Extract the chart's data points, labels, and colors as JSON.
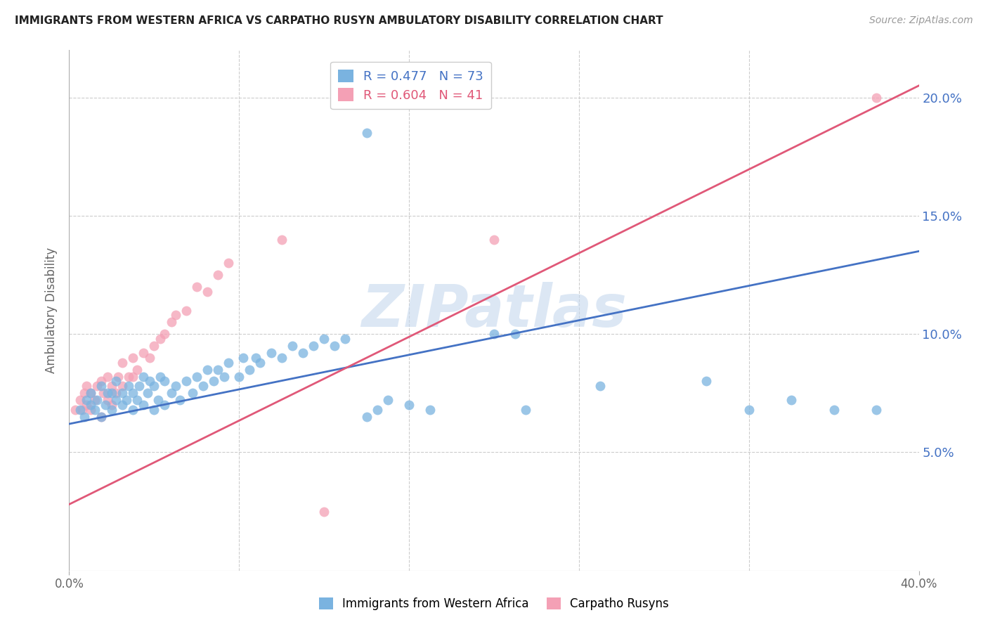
{
  "title": "IMMIGRANTS FROM WESTERN AFRICA VS CARPATHO RUSYN AMBULATORY DISABILITY CORRELATION CHART",
  "source": "Source: ZipAtlas.com",
  "ylabel": "Ambulatory Disability",
  "xlim": [
    0.0,
    0.4
  ],
  "ylim": [
    0.0,
    0.22
  ],
  "yticks": [
    0.05,
    0.1,
    0.15,
    0.2
  ],
  "ytick_labels": [
    "5.0%",
    "10.0%",
    "15.0%",
    "20.0%"
  ],
  "blue_R": 0.477,
  "blue_N": 73,
  "pink_R": 0.604,
  "pink_N": 41,
  "blue_color": "#7ab3e0",
  "pink_color": "#f4a0b5",
  "blue_line_color": "#4472c4",
  "pink_line_color": "#e05878",
  "watermark": "ZIPatlas",
  "watermark_color": "#c5d8ee",
  "blue_line_x0": 0.0,
  "blue_line_y0": 0.062,
  "blue_line_x1": 0.4,
  "blue_line_y1": 0.135,
  "pink_line_x0": 0.0,
  "pink_line_y0": 0.028,
  "pink_line_x1": 0.4,
  "pink_line_y1": 0.205,
  "background_color": "#ffffff",
  "grid_color": "#cccccc",
  "blue_scatter_x": [
    0.005,
    0.007,
    0.008,
    0.01,
    0.01,
    0.012,
    0.013,
    0.015,
    0.015,
    0.017,
    0.018,
    0.02,
    0.02,
    0.022,
    0.022,
    0.025,
    0.025,
    0.027,
    0.028,
    0.03,
    0.03,
    0.032,
    0.033,
    0.035,
    0.035,
    0.037,
    0.038,
    0.04,
    0.04,
    0.042,
    0.043,
    0.045,
    0.045,
    0.048,
    0.05,
    0.052,
    0.055,
    0.058,
    0.06,
    0.063,
    0.065,
    0.068,
    0.07,
    0.073,
    0.075,
    0.08,
    0.082,
    0.085,
    0.088,
    0.09,
    0.095,
    0.1,
    0.105,
    0.11,
    0.115,
    0.12,
    0.125,
    0.13,
    0.14,
    0.145,
    0.15,
    0.16,
    0.17,
    0.2,
    0.21,
    0.215,
    0.25,
    0.3,
    0.32,
    0.34,
    0.36,
    0.38,
    0.14
  ],
  "blue_scatter_y": [
    0.068,
    0.065,
    0.072,
    0.07,
    0.075,
    0.068,
    0.072,
    0.065,
    0.078,
    0.07,
    0.075,
    0.068,
    0.075,
    0.072,
    0.08,
    0.07,
    0.075,
    0.072,
    0.078,
    0.068,
    0.075,
    0.072,
    0.078,
    0.07,
    0.082,
    0.075,
    0.08,
    0.068,
    0.078,
    0.072,
    0.082,
    0.07,
    0.08,
    0.075,
    0.078,
    0.072,
    0.08,
    0.075,
    0.082,
    0.078,
    0.085,
    0.08,
    0.085,
    0.082,
    0.088,
    0.082,
    0.09,
    0.085,
    0.09,
    0.088,
    0.092,
    0.09,
    0.095,
    0.092,
    0.095,
    0.098,
    0.095,
    0.098,
    0.065,
    0.068,
    0.072,
    0.07,
    0.068,
    0.1,
    0.1,
    0.068,
    0.078,
    0.08,
    0.068,
    0.072,
    0.068,
    0.068,
    0.185
  ],
  "pink_scatter_x": [
    0.003,
    0.005,
    0.006,
    0.007,
    0.008,
    0.008,
    0.01,
    0.01,
    0.012,
    0.013,
    0.015,
    0.015,
    0.016,
    0.018,
    0.018,
    0.02,
    0.02,
    0.022,
    0.023,
    0.025,
    0.025,
    0.028,
    0.03,
    0.03,
    0.032,
    0.035,
    0.038,
    0.04,
    0.043,
    0.045,
    0.048,
    0.05,
    0.055,
    0.06,
    0.065,
    0.07,
    0.075,
    0.1,
    0.2,
    0.38,
    0.12
  ],
  "pink_scatter_y": [
    0.068,
    0.072,
    0.068,
    0.075,
    0.07,
    0.078,
    0.068,
    0.075,
    0.072,
    0.078,
    0.065,
    0.08,
    0.075,
    0.072,
    0.082,
    0.07,
    0.078,
    0.075,
    0.082,
    0.078,
    0.088,
    0.082,
    0.082,
    0.09,
    0.085,
    0.092,
    0.09,
    0.095,
    0.098,
    0.1,
    0.105,
    0.108,
    0.11,
    0.12,
    0.118,
    0.125,
    0.13,
    0.14,
    0.14,
    0.2,
    0.025
  ]
}
